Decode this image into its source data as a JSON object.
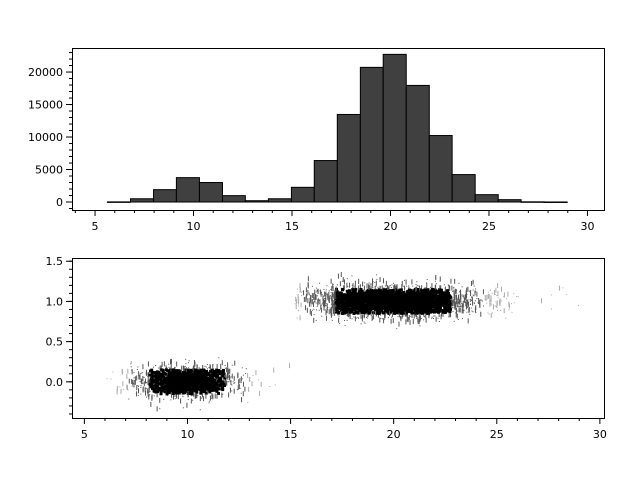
{
  "chart_data": [
    {
      "type": "bar",
      "subtype": "histogram",
      "bin_edges": [
        5.63,
        6.8,
        7.97,
        9.13,
        10.3,
        11.47,
        12.63,
        13.8,
        14.97,
        16.13,
        17.3,
        18.47,
        19.63,
        20.8,
        21.97,
        23.13,
        24.3,
        25.47,
        26.63,
        27.8,
        28.97
      ],
      "values": [
        20,
        500,
        1900,
        3750,
        3000,
        980,
        200,
        500,
        2260,
        6380,
        13470,
        20720,
        22720,
        17940,
        10230,
        4220,
        1130,
        360,
        30,
        5
      ],
      "bar_color": "#404040",
      "edge_color": "#000000",
      "xlim": [
        3.83,
        30.84
      ],
      "ylim": [
        -1230,
        23700
      ],
      "xticks": [
        "5",
        "10",
        "15",
        "20",
        "25",
        "30"
      ],
      "yticks": [
        "0",
        "5000",
        "10000",
        "15000",
        "20000"
      ],
      "title": "",
      "xlabel": "",
      "ylabel": "",
      "grid": false
    },
    {
      "type": "scatter",
      "point_color": "#000000",
      "clusters": [
        {
          "x_mean": 10,
          "x_sd": 1.3,
          "x_range": [
            5.6,
            15.2
          ],
          "y_mean": 0.0,
          "y_sd": 0.1
        },
        {
          "x_mean": 20,
          "x_sd": 2.0,
          "x_range": [
            15.2,
            29
          ],
          "y_mean": 1.0,
          "y_sd": 0.1
        }
      ],
      "xlim": [
        4.4,
        30.2
      ],
      "ylim": [
        -0.45,
        1.54
      ],
      "xticks": [
        "5",
        "10",
        "15",
        "20",
        "25",
        "30"
      ],
      "yticks": [
        "0.0",
        "0.5",
        "1.0",
        "1.5"
      ],
      "title": "",
      "xlabel": "",
      "ylabel": "",
      "grid": false
    }
  ]
}
